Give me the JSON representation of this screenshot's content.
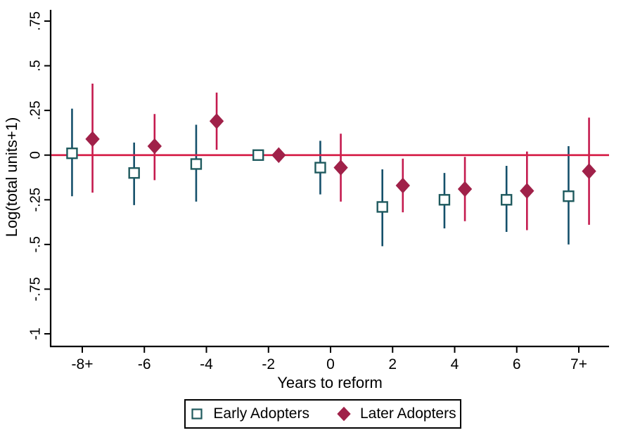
{
  "chart_data": {
    "type": "scatter",
    "subtype": "event-study coefficient plot with confidence intervals",
    "title": "",
    "xlabel": "Years to reform",
    "ylabel": "Log(total units+1)",
    "ylim": [
      -1,
      0.75
    ],
    "grid": false,
    "zero_line": {
      "value": 0,
      "color": "#d62049"
    },
    "x_tick_labels": [
      "-8+",
      "-6",
      "-4",
      "-2",
      "0",
      "2",
      "4",
      "6",
      "7+"
    ],
    "y_ticks": [
      {
        "label": ".75",
        "value": 0.75
      },
      {
        "label": ".5",
        "value": 0.5
      },
      {
        "label": ".25",
        "value": 0.25
      },
      {
        "label": "0",
        "value": 0
      },
      {
        "label": "-.25",
        "value": -0.25
      },
      {
        "label": "-.5",
        "value": -0.5
      },
      {
        "label": "-.75",
        "value": -0.75
      },
      {
        "label": "-1",
        "value": -1
      }
    ],
    "legend": {
      "position": "bottom-center",
      "entries": [
        {
          "label": "Early Adopters",
          "marker": "open-square",
          "color": "#1f5a5e"
        },
        {
          "label": "Later Adopters",
          "marker": "filled-diamond",
          "color": "#a02149"
        }
      ]
    },
    "series": [
      {
        "name": "Early Adopters",
        "marker": "open-square",
        "marker_color": "#1f5a5e",
        "line_color": "#15506b",
        "offset": -0.165,
        "points": [
          {
            "x": "-8+",
            "est": 0.01,
            "lo": -0.23,
            "hi": 0.26
          },
          {
            "x": "-6",
            "est": -0.1,
            "lo": -0.28,
            "hi": 0.07
          },
          {
            "x": "-4",
            "est": -0.05,
            "lo": -0.26,
            "hi": 0.17
          },
          {
            "x": "-2",
            "est": 0.0,
            "lo": null,
            "hi": null
          },
          {
            "x": "0",
            "est": -0.07,
            "lo": -0.22,
            "hi": 0.08
          },
          {
            "x": "2",
            "est": -0.29,
            "lo": -0.51,
            "hi": -0.08
          },
          {
            "x": "4",
            "est": -0.25,
            "lo": -0.41,
            "hi": -0.1
          },
          {
            "x": "6",
            "est": -0.25,
            "lo": -0.43,
            "hi": -0.06
          },
          {
            "x": "7+",
            "est": -0.23,
            "lo": -0.5,
            "hi": 0.05
          }
        ]
      },
      {
        "name": "Later Adopters",
        "marker": "filled-diamond",
        "marker_color": "#a02149",
        "line_color": "#c41a4e",
        "offset": 0.165,
        "points": [
          {
            "x": "-8+",
            "est": 0.09,
            "lo": -0.21,
            "hi": 0.4
          },
          {
            "x": "-6",
            "est": 0.05,
            "lo": -0.14,
            "hi": 0.23
          },
          {
            "x": "-4",
            "est": 0.19,
            "lo": 0.03,
            "hi": 0.35
          },
          {
            "x": "-2",
            "est": 0.0,
            "lo": null,
            "hi": null
          },
          {
            "x": "0",
            "est": -0.07,
            "lo": -0.26,
            "hi": 0.12
          },
          {
            "x": "2",
            "est": -0.17,
            "lo": -0.32,
            "hi": -0.02
          },
          {
            "x": "4",
            "est": -0.19,
            "lo": -0.37,
            "hi": -0.01
          },
          {
            "x": "6",
            "est": -0.2,
            "lo": -0.42,
            "hi": 0.02
          },
          {
            "x": "7+",
            "est": -0.09,
            "lo": -0.39,
            "hi": 0.21
          }
        ]
      }
    ],
    "colors": {
      "axis": "#000000",
      "text": "#000000",
      "background": "#ffffff",
      "early_line": "#15506b",
      "early_marker": "#1f5a5e",
      "later_line": "#c41a4e",
      "later_marker": "#a02149",
      "zero_line": "#d62049"
    }
  }
}
